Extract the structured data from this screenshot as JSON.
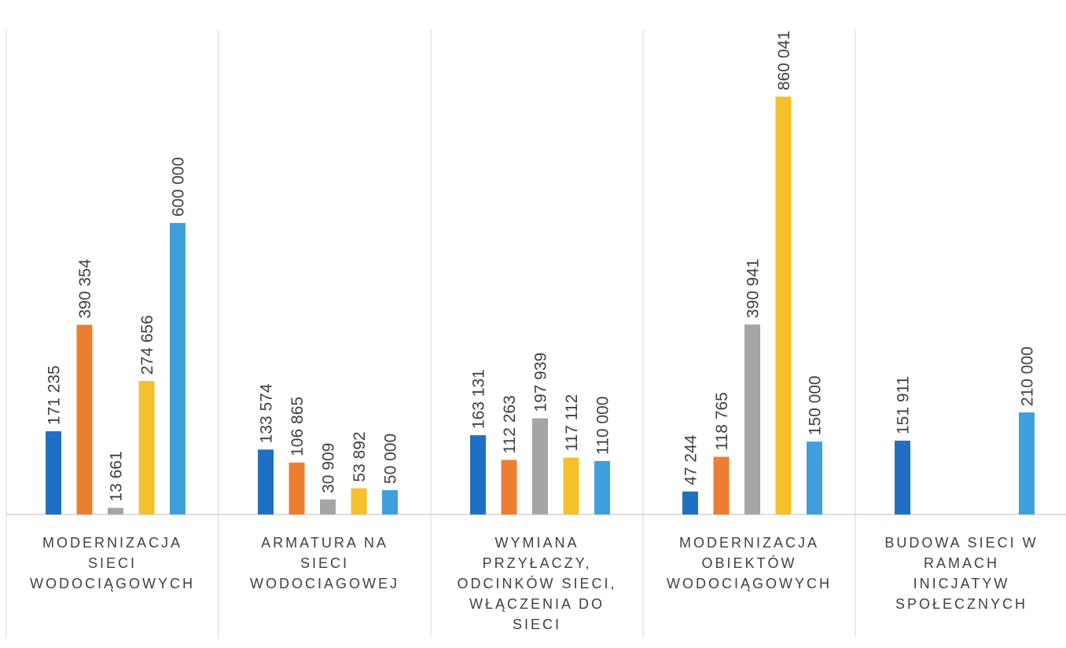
{
  "chart_data": {
    "type": "bar",
    "categories": [
      [
        "MODERNIZACJA",
        "SIECI",
        "WODOCIĄGOWYCH"
      ],
      [
        "ARMATURA NA",
        "SIECI",
        "WODOCIAGOWEJ"
      ],
      [
        "WYMIANA",
        "PRZYŁACZY,",
        "ODCINKÓW SIECI,",
        "WŁĄCZENIA DO",
        "SIECI"
      ],
      [
        "MODERNIZACJA",
        "OBIEKTÓW",
        "WODOCIĄGOWYCH"
      ],
      [
        "BUDOWA SIECI W",
        "RAMACH",
        "INICJATYW",
        "SPOŁECZNYCH"
      ]
    ],
    "series": [
      {
        "color": "#1f6fc5",
        "values": [
          171235,
          133574,
          163131,
          47244,
          151911
        ]
      },
      {
        "color": "#ed7d31",
        "values": [
          390354,
          106865,
          112263,
          118765,
          null
        ]
      },
      {
        "color": "#a5a5a5",
        "values": [
          13661,
          30909,
          197939,
          390941,
          null
        ]
      },
      {
        "color": "#f5c02a",
        "values": [
          274656,
          53892,
          117112,
          860041,
          null
        ]
      },
      {
        "color": "#3f9fdc",
        "values": [
          600000,
          50000,
          110000,
          150000,
          210000
        ]
      }
    ],
    "value_labels": [
      [
        "171 235",
        "133 574",
        "163 131",
        "47 244",
        "151 911"
      ],
      [
        "390 354",
        "106 865",
        "112 263",
        "118 765",
        null
      ],
      [
        "13 661",
        "30 909",
        "197 939",
        "390 941",
        null
      ],
      [
        "274 656",
        "53 892",
        "117 112",
        "860 041",
        null
      ],
      [
        "600 000",
        "50 000",
        "110 000",
        "150 000",
        "210 000"
      ]
    ],
    "ylim": [
      0,
      1000000
    ],
    "grid": false,
    "legend": "none",
    "title": "",
    "xlabel": "",
    "ylabel": ""
  }
}
